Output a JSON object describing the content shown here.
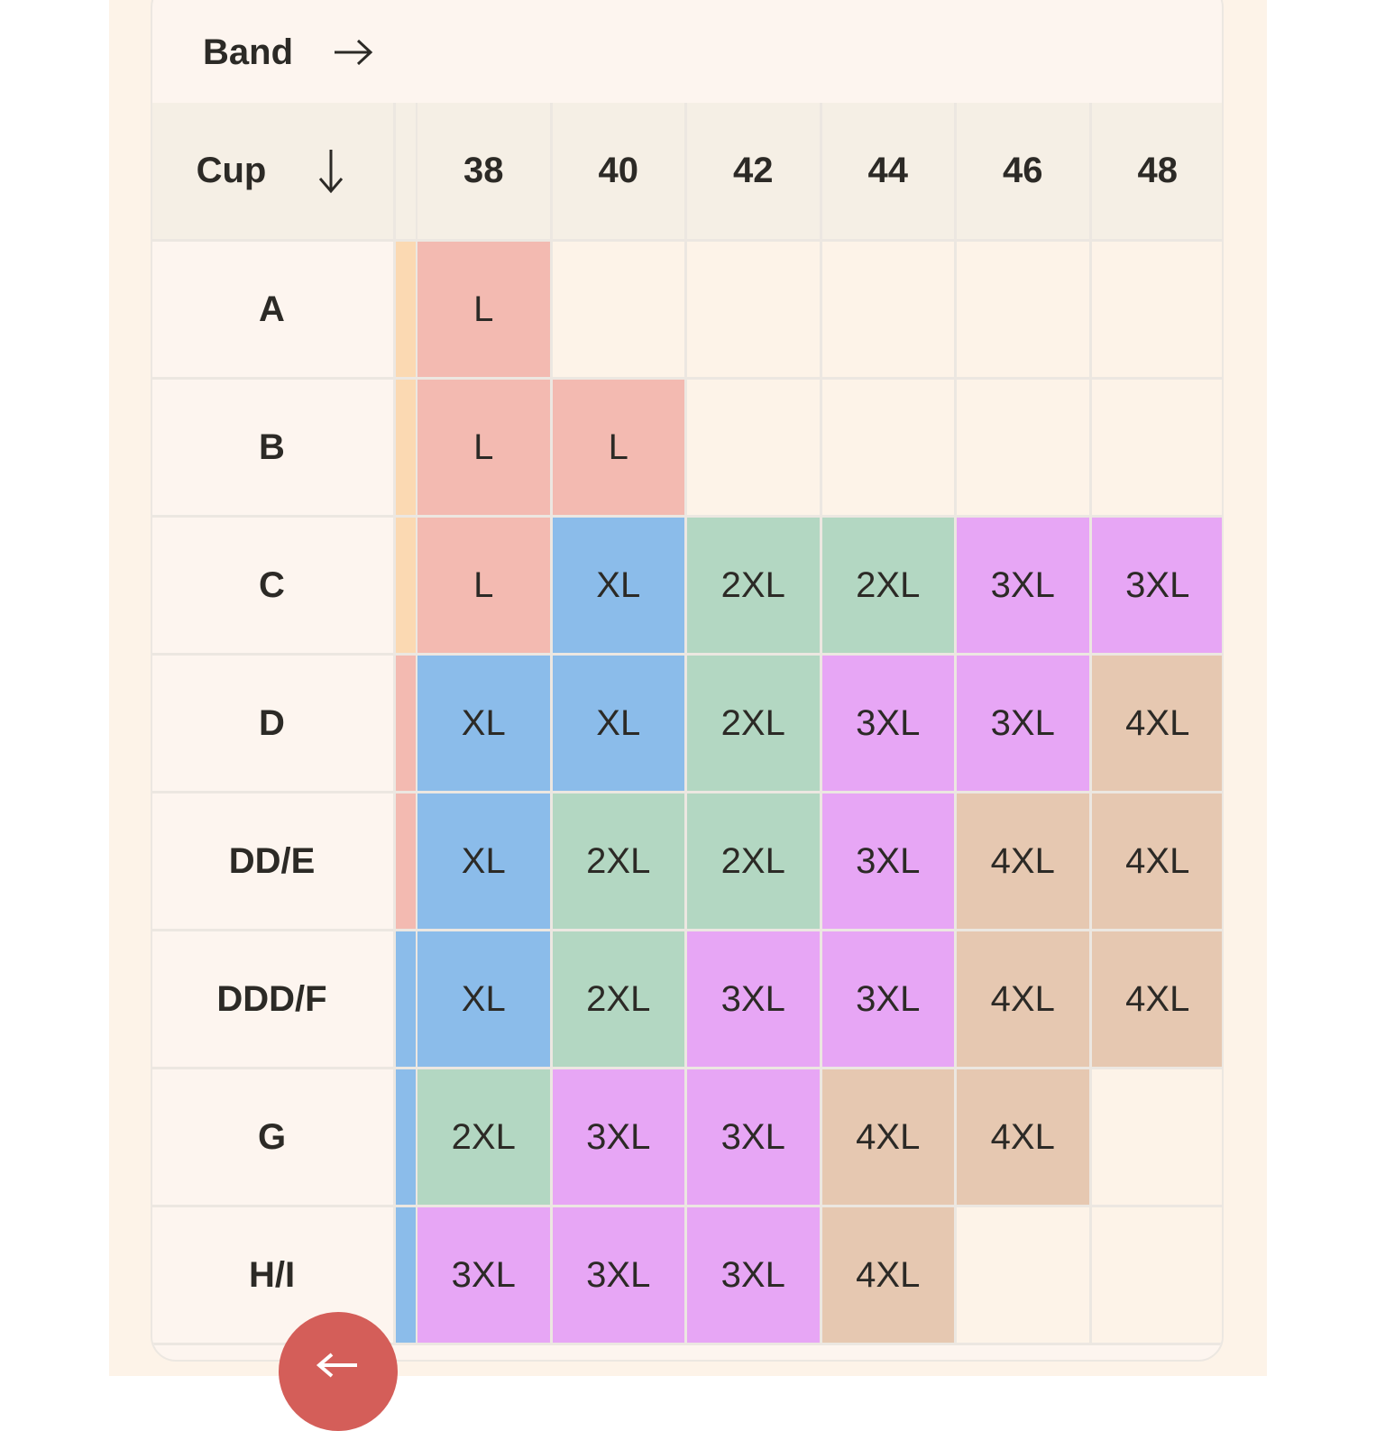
{
  "band_header": {
    "label": "Band",
    "arrow_icon": "arrow-right-icon"
  },
  "cup_header": {
    "label": "Cup",
    "arrow_icon": "arrow-down-icon"
  },
  "bands": [
    "38",
    "40",
    "42",
    "44",
    "46",
    "48"
  ],
  "size_colors": {
    "L": "#f3bab1",
    "XL": "#8bbcea",
    "2XL": "#b3d7c2",
    "3XL": "#e7a6f5",
    "4XL": "#e6c8b1",
    "empty": "#fdf3e8"
  },
  "rows": [
    {
      "cup": "A",
      "strip": "#fbd9b2",
      "sizes": [
        "L",
        "",
        "",
        "",
        "",
        ""
      ]
    },
    {
      "cup": "B",
      "strip": "#fbd9b2",
      "sizes": [
        "L",
        "L",
        "",
        "",
        "",
        ""
      ]
    },
    {
      "cup": "C",
      "strip": "#fbd9b2",
      "sizes": [
        "L",
        "XL",
        "2XL",
        "2XL",
        "3XL",
        "3XL"
      ]
    },
    {
      "cup": "D",
      "strip": "#f3bab1",
      "sizes": [
        "XL",
        "XL",
        "2XL",
        "3XL",
        "3XL",
        "4XL"
      ]
    },
    {
      "cup": "DD/E",
      "strip": "#f3bab1",
      "sizes": [
        "XL",
        "2XL",
        "2XL",
        "3XL",
        "4XL",
        "4XL"
      ]
    },
    {
      "cup": "DDD/F",
      "strip": "#8bbcea",
      "sizes": [
        "XL",
        "2XL",
        "3XL",
        "3XL",
        "4XL",
        "4XL"
      ]
    },
    {
      "cup": "G",
      "strip": "#8bbcea",
      "sizes": [
        "2XL",
        "3XL",
        "3XL",
        "4XL",
        "4XL",
        ""
      ]
    },
    {
      "cup": "H/I",
      "strip": "#8bbcea",
      "sizes": [
        "3XL",
        "3XL",
        "3XL",
        "4XL",
        "",
        ""
      ]
    }
  ],
  "back_button": {
    "icon": "arrow-left-icon",
    "color": "#d45e59"
  }
}
